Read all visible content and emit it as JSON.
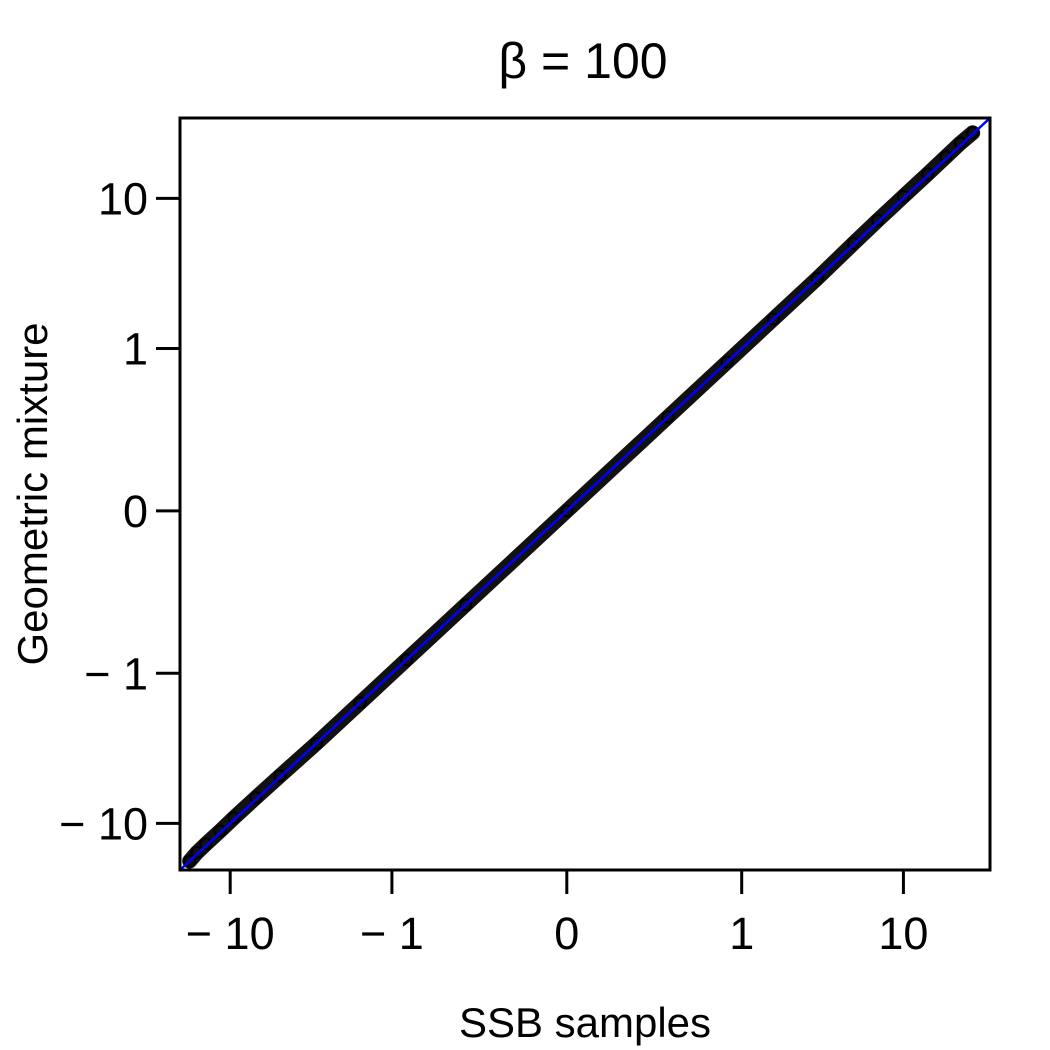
{
  "chart_data": {
    "type": "scatter",
    "title": "β = 100",
    "xlabel": "SSB samples",
    "ylabel": "Geometric mixture",
    "scale": "signed-log (asinh-like)",
    "x_ticks": [
      {
        "value": -10,
        "label": "− 10"
      },
      {
        "value": -1,
        "label": "− 1"
      },
      {
        "value": 0,
        "label": "0"
      },
      {
        "value": 1,
        "label": "1"
      },
      {
        "value": 10,
        "label": "10"
      }
    ],
    "y_ticks": [
      {
        "value": -10,
        "label": "− 10"
      },
      {
        "value": -1,
        "label": "− 1"
      },
      {
        "value": 0,
        "label": "0"
      },
      {
        "value": 1,
        "label": "1"
      },
      {
        "value": 10,
        "label": "10"
      }
    ],
    "xlim": [
      -20,
      33
    ],
    "ylim": [
      -20,
      33
    ],
    "reference_line": {
      "type": "y = x",
      "color": "#0000ff"
    },
    "series": [
      {
        "marker": "open-circle",
        "color": "#000000",
        "points": [
          {
            "x": -17.5,
            "y": -17.5
          },
          {
            "x": -15.8,
            "y": -15.4
          },
          {
            "x": -14.0,
            "y": -13.6
          },
          {
            "x": -11.5,
            "y": -11.2
          },
          {
            "x": -9.5,
            "y": -9.2
          },
          {
            "x": -7.0,
            "y": -6.8
          },
          {
            "x": -5.0,
            "y": -4.9
          },
          {
            "x": -3.0,
            "y": -3.0
          },
          {
            "x": -1.6,
            "y": -1.6
          },
          {
            "x": -0.8,
            "y": -0.8
          },
          {
            "x": -0.3,
            "y": -0.3
          },
          {
            "x": 0.0,
            "y": 0.0
          },
          {
            "x": 0.3,
            "y": 0.3
          },
          {
            "x": 0.8,
            "y": 0.8
          },
          {
            "x": 1.6,
            "y": 1.6
          },
          {
            "x": 3.0,
            "y": 3.0
          },
          {
            "x": 5.0,
            "y": 5.1
          },
          {
            "x": 7.0,
            "y": 7.2
          },
          {
            "x": 10.0,
            "y": 10.3
          },
          {
            "x": 14.0,
            "y": 14.4
          },
          {
            "x": 18.0,
            "y": 18.6
          },
          {
            "x": 22.0,
            "y": 22.8
          },
          {
            "x": 26.0,
            "y": 26.5
          }
        ]
      }
    ]
  }
}
